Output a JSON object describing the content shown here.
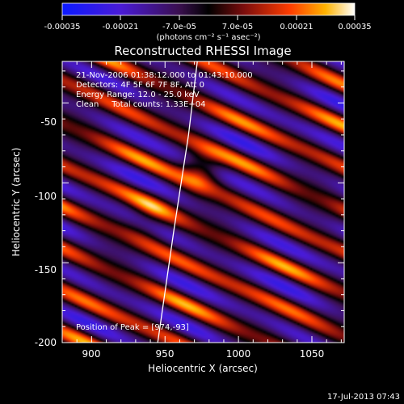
{
  "chart_data": {
    "type": "heatmap",
    "title": "Reconstructed RHESSI Image",
    "xlabel": "Heliocentric X (arcsec)",
    "ylabel": "Heliocentric Y (arcsec)",
    "xlim": [
      880,
      1072
    ],
    "ylim": [
      -200,
      -24
    ],
    "x_ticks": [
      900,
      950,
      1000,
      1050
    ],
    "y_ticks": [
      -50,
      -100,
      -150,
      -200
    ],
    "colorbar": {
      "min": -0.00035,
      "max": 0.00035,
      "ticks": [
        "-0.00035",
        "-0.00021",
        "-7.0e-05",
        "7.0e-05",
        "0.00021",
        "0.00035"
      ],
      "label": "(photons cm⁻² s⁻¹ asec⁻²)"
    },
    "annotations": [
      "21-Nov-2006 01:38:12.000 to 01:43:10.000",
      "Detectors: 4F 5F 6F 7F 8F, Att 0",
      "Energy Range: 12.0 - 25.0 keV",
      "Clean     Total counts: 1.33E+04"
    ],
    "peak_label": "Position of Peak = [974,-93]",
    "peak": [
      974,
      -93
    ],
    "limb_points": [
      [
        972,
        -24
      ],
      [
        966,
        -70
      ],
      [
        956,
        -130
      ],
      [
        945,
        -200
      ]
    ],
    "footer": "17-Jul-2013 07:43",
    "colors": {
      "background": "#000000",
      "text": "#ffffff",
      "high": "#ffffff",
      "low": "#1d1dff"
    }
  }
}
